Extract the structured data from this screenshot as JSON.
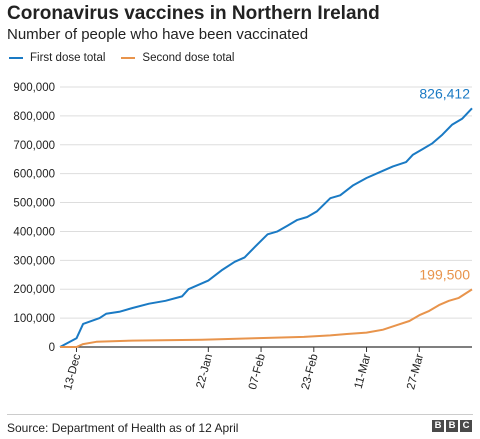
{
  "header": {
    "title": "Coronavirus vaccines in Northern Ireland",
    "subtitle": "Number of people who have been vaccinated"
  },
  "footer": {
    "source": "Source: Department of Health as of 12 April",
    "logo_letters": [
      "B",
      "B",
      "C"
    ]
  },
  "chart_data": {
    "type": "line",
    "x_axis": {
      "ticks": [
        "13-Dec",
        "22-Jan",
        "07-Feb",
        "23-Feb",
        "11-Mar",
        "27-Mar"
      ],
      "tick_dates": [
        "2020-12-13",
        "2021-01-22",
        "2021-02-07",
        "2021-02-23",
        "2021-03-11",
        "2021-03-27"
      ],
      "range": [
        "2020-12-08",
        "2021-04-12"
      ]
    },
    "y_axis": {
      "ticks": [
        "900,000",
        "800,000",
        "700,000",
        "600,000",
        "500,000",
        "400,000",
        "300,000",
        "200,000",
        "100,000",
        "0"
      ],
      "tick_values": [
        900000,
        800000,
        700000,
        600000,
        500000,
        400000,
        300000,
        200000,
        100000,
        0
      ],
      "ylim": [
        0,
        900000
      ]
    },
    "grid": true,
    "legend_position": "top-left",
    "series": [
      {
        "name": "First dose total",
        "color": "#1a7ac4",
        "end_label": "826,412",
        "points": [
          [
            "2020-12-08",
            0
          ],
          [
            "2020-12-13",
            30000
          ],
          [
            "2020-12-15",
            80000
          ],
          [
            "2020-12-20",
            100000
          ],
          [
            "2020-12-22",
            115000
          ],
          [
            "2020-12-26",
            122000
          ],
          [
            "2020-12-30",
            135000
          ],
          [
            "2021-01-04",
            150000
          ],
          [
            "2021-01-09",
            160000
          ],
          [
            "2021-01-14",
            175000
          ],
          [
            "2021-01-16",
            200000
          ],
          [
            "2021-01-22",
            230000
          ],
          [
            "2021-01-26",
            265000
          ],
          [
            "2021-01-30",
            295000
          ],
          [
            "2021-02-02",
            310000
          ],
          [
            "2021-02-05",
            345000
          ],
          [
            "2021-02-09",
            390000
          ],
          [
            "2021-02-12",
            400000
          ],
          [
            "2021-02-15",
            420000
          ],
          [
            "2021-02-18",
            440000
          ],
          [
            "2021-02-21",
            450000
          ],
          [
            "2021-02-24",
            470000
          ],
          [
            "2021-02-28",
            515000
          ],
          [
            "2021-03-03",
            525000
          ],
          [
            "2021-03-07",
            560000
          ],
          [
            "2021-03-11",
            585000
          ],
          [
            "2021-03-15",
            605000
          ],
          [
            "2021-03-19",
            625000
          ],
          [
            "2021-03-23",
            640000
          ],
          [
            "2021-03-25",
            665000
          ],
          [
            "2021-03-28",
            685000
          ],
          [
            "2021-03-31",
            705000
          ],
          [
            "2021-04-03",
            735000
          ],
          [
            "2021-04-06",
            770000
          ],
          [
            "2021-04-09",
            790000
          ],
          [
            "2021-04-12",
            826412
          ]
        ]
      },
      {
        "name": "Second dose total",
        "color": "#e8944c",
        "end_label": "199,500",
        "points": [
          [
            "2020-12-08",
            0
          ],
          [
            "2020-12-13",
            0
          ],
          [
            "2020-12-15",
            10000
          ],
          [
            "2020-12-19",
            18000
          ],
          [
            "2020-12-30",
            22000
          ],
          [
            "2021-01-20",
            25000
          ],
          [
            "2021-02-05",
            30000
          ],
          [
            "2021-02-20",
            35000
          ],
          [
            "2021-02-28",
            40000
          ],
          [
            "2021-03-05",
            45000
          ],
          [
            "2021-03-11",
            50000
          ],
          [
            "2021-03-16",
            60000
          ],
          [
            "2021-03-20",
            75000
          ],
          [
            "2021-03-24",
            90000
          ],
          [
            "2021-03-27",
            110000
          ],
          [
            "2021-03-30",
            125000
          ],
          [
            "2021-04-02",
            145000
          ],
          [
            "2021-04-05",
            160000
          ],
          [
            "2021-04-08",
            170000
          ],
          [
            "2021-04-10",
            185000
          ],
          [
            "2021-04-12",
            199500
          ]
        ]
      }
    ]
  }
}
